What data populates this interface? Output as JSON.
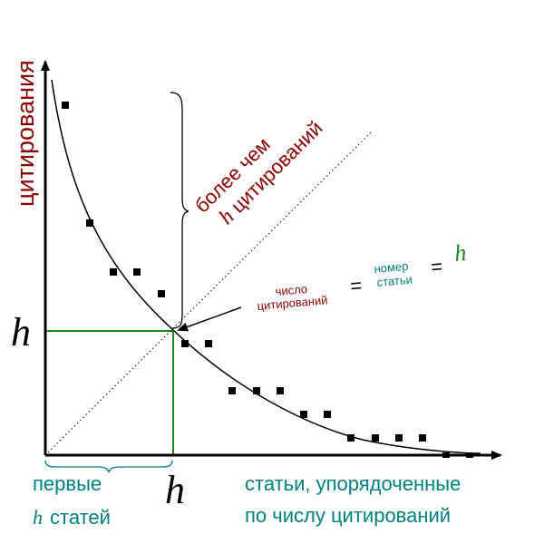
{
  "diagram": {
    "y_axis_label": "цитирования",
    "x_axis_label_line1": "статьи, упорядоченные",
    "x_axis_label_line2": "по числу цитирований",
    "h_symbol": "h",
    "brace_label_line1": "более чем",
    "brace_label_line2": "цитирований",
    "first_h_line1": "первые",
    "first_h_line2": "статей",
    "eq_citations_line1": "число",
    "eq_citations_line2": "цитирований",
    "eq_sign": "=",
    "eq_paper_line1": "номер",
    "eq_paper_line2": "статьи",
    "colors": {
      "dark_red": "#8b0000",
      "teal": "#008080",
      "green": "#1a8a1a",
      "black": "#000000"
    }
  }
}
